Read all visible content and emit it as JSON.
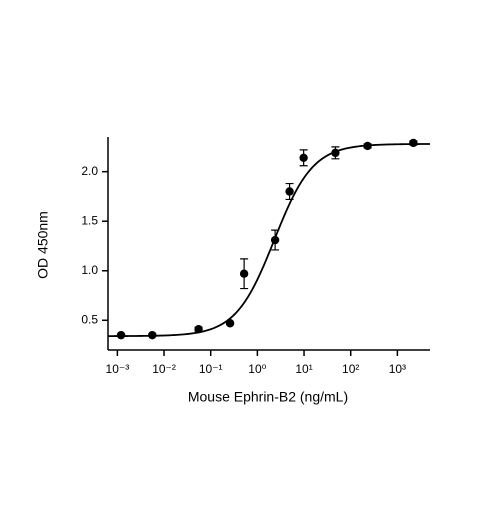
{
  "chart_data": {
    "type": "scatter",
    "x_label": "Mouse Ephrin-B2 (ng/mL)",
    "y_label": "OD 450nm",
    "log_x": true,
    "color": "#000000",
    "x": [
      0.0012,
      0.0056,
      0.055,
      0.26,
      0.52,
      2.4,
      4.9,
      9.8,
      47,
      230,
      2200
    ],
    "values": [
      0.35,
      0.35,
      0.41,
      0.47,
      0.97,
      1.31,
      1.8,
      2.14,
      2.19,
      2.26,
      2.29
    ],
    "errors": [
      0.01,
      0.01,
      0.02,
      0.01,
      0.15,
      0.1,
      0.08,
      0.08,
      0.06,
      0.02,
      0.02
    ],
    "fit": {
      "bottom": 0.34,
      "top": 2.28,
      "ec50": 2.3,
      "hill": 1.05
    },
    "xlim": [
      0.00063,
      5000
    ],
    "ylim": [
      0.2,
      2.35
    ],
    "xticks": [
      {
        "value": 0.001,
        "label": "10⁻³"
      },
      {
        "value": 0.01,
        "label": "10⁻²"
      },
      {
        "value": 0.1,
        "label": "10⁻¹"
      },
      {
        "value": 1,
        "label": "10⁰"
      },
      {
        "value": 10,
        "label": "10¹"
      },
      {
        "value": 100,
        "label": "10²"
      },
      {
        "value": 1000,
        "label": "10³"
      }
    ],
    "yticks": [
      0.5,
      {
        "value": 1,
        "label": "1.0"
      },
      1.5,
      {
        "value": 2,
        "label": "2.0"
      }
    ]
  }
}
